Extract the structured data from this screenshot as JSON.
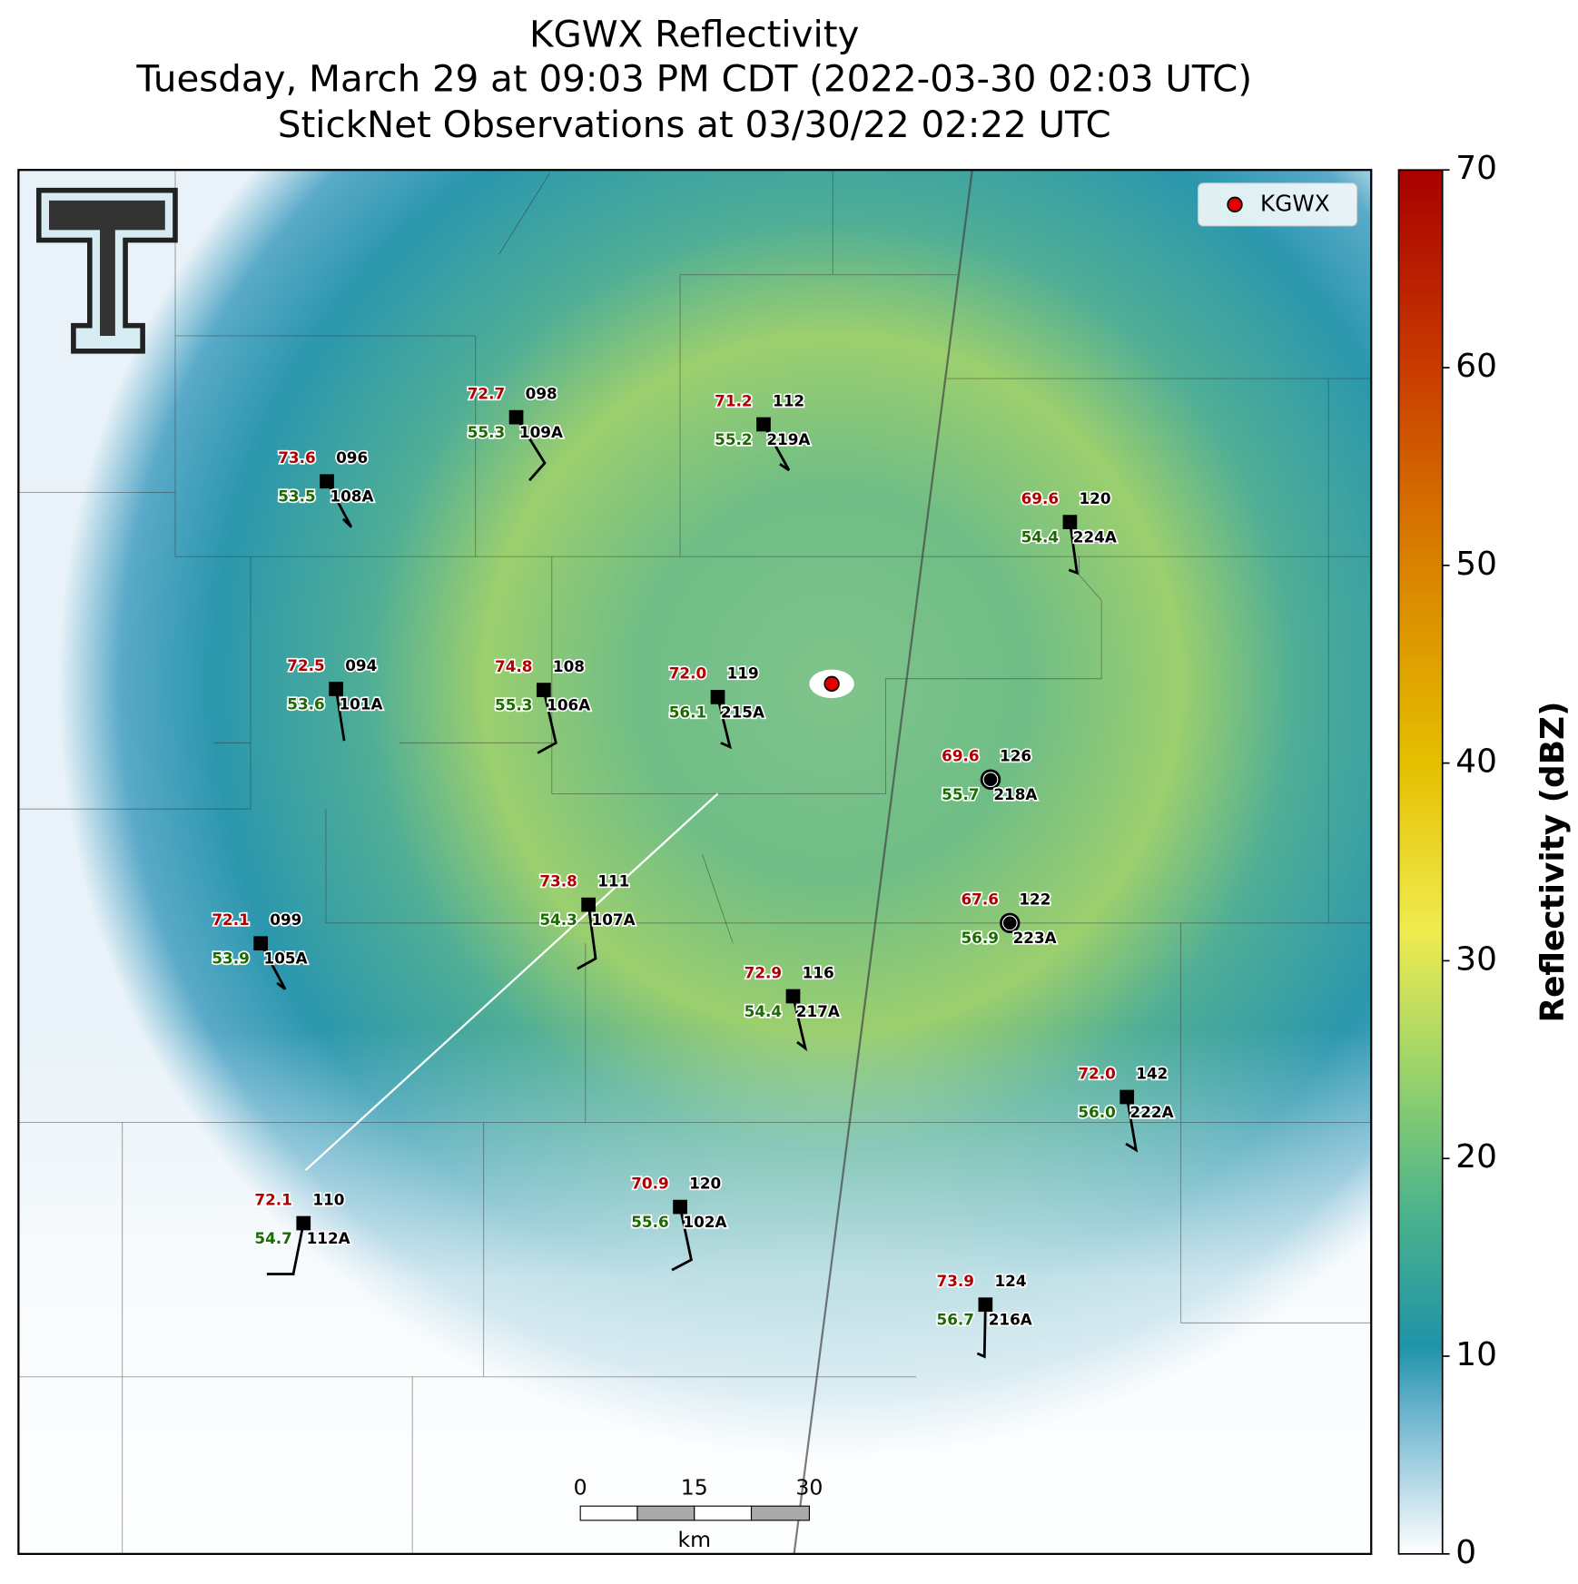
{
  "header": {
    "title": "KGWX Reflectivity",
    "subtitle": "Tuesday, March 29 at 09:03 PM CDT (2022-03-30 02:03 UTC)",
    "observations": "StickNet Observations at 03/30/22 02:22 UTC"
  },
  "legend": {
    "label": "KGWX"
  },
  "colorbar": {
    "label": "Reflectivity (dBZ)",
    "ticks": [
      "0",
      "10",
      "20",
      "30",
      "40",
      "50",
      "60",
      "70"
    ]
  },
  "scale_bar": {
    "ticks": [
      "0",
      "15",
      "30"
    ],
    "unit": "km"
  },
  "stations": [
    {
      "temperature": "73.6",
      "wind": "096",
      "dewpoint": "53.5",
      "id": "108A"
    },
    {
      "temperature": "72.7",
      "wind": "098",
      "dewpoint": "55.3",
      "id": "109A"
    },
    {
      "temperature": "71.2",
      "wind": "112",
      "dewpoint": "55.2",
      "id": "219A"
    },
    {
      "temperature": "69.6",
      "wind": "120",
      "dewpoint": "54.4",
      "id": "224A"
    },
    {
      "temperature": "72.5",
      "wind": "094",
      "dewpoint": "53.6",
      "id": "101A"
    },
    {
      "temperature": "74.8",
      "wind": "108",
      "dewpoint": "55.3",
      "id": "106A"
    },
    {
      "temperature": "72.0",
      "wind": "119",
      "dewpoint": "56.1",
      "id": "215A"
    },
    {
      "temperature": "69.6",
      "wind": "126",
      "dewpoint": "55.7",
      "id": "218A"
    },
    {
      "temperature": "67.6",
      "wind": "122",
      "dewpoint": "56.9",
      "id": "223A"
    },
    {
      "temperature": "73.8",
      "wind": "111",
      "dewpoint": "54.3",
      "id": "107A"
    },
    {
      "temperature": "72.1",
      "wind": "099",
      "dewpoint": "53.9",
      "id": "105A"
    },
    {
      "temperature": "72.9",
      "wind": "116",
      "dewpoint": "54.4",
      "id": "217A"
    },
    {
      "temperature": "72.0",
      "wind": "142",
      "dewpoint": "56.0",
      "id": "222A"
    },
    {
      "temperature": "70.9",
      "wind": "120",
      "dewpoint": "55.6",
      "id": "102A"
    },
    {
      "temperature": "72.1",
      "wind": "110",
      "dewpoint": "54.7",
      "id": "112A"
    },
    {
      "temperature": "73.9",
      "wind": "124",
      "dewpoint": "56.7",
      "id": "216A"
    }
  ]
}
